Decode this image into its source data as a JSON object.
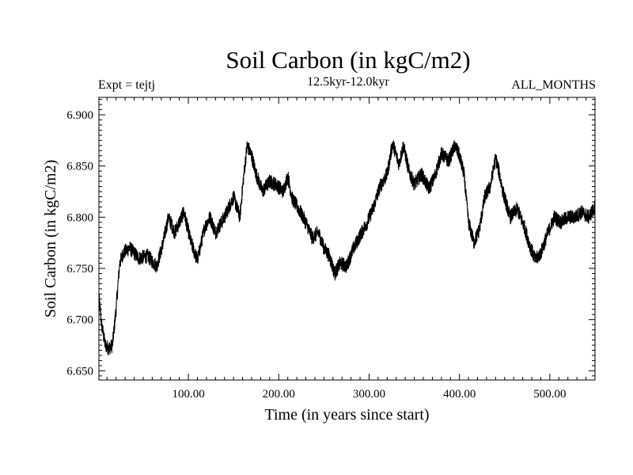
{
  "chart_data": {
    "type": "line",
    "title": "Soil Carbon (in kgC/m2)",
    "subtitle": "12.5kyr-12.0kyr",
    "left_annotation": "Expt = tejtj",
    "right_annotation": "ALL_MONTHS",
    "xlabel": "Time (in years since start)",
    "ylabel": "Soil Carbon (in kgC/m2)",
    "xlim": [
      1,
      550
    ],
    "ylim": [
      6.641,
      6.917
    ],
    "xticks": [
      100,
      200,
      300,
      400,
      500
    ],
    "xtick_labels": [
      "100.00",
      "200.00",
      "300.00",
      "400.00",
      "500.00"
    ],
    "yticks": [
      6.65,
      6.7,
      6.75,
      6.8,
      6.85,
      6.9
    ],
    "ytick_labels": [
      "6.650",
      "6.700",
      "6.750",
      "6.800",
      "6.850",
      "6.900"
    ],
    "grid": false,
    "series": [
      {
        "name": "Soil Carbon",
        "color": "#000000",
        "noise": 0.007,
        "x": [
          1,
          4,
          8,
          12,
          16,
          20,
          24,
          28,
          35,
          45,
          55,
          65,
          72,
          78,
          85,
          95,
          103,
          110,
          118,
          124,
          130,
          140,
          150,
          157,
          161,
          165,
          170,
          175,
          182,
          190,
          197,
          205,
          210,
          215,
          222,
          230,
          237,
          244,
          250,
          256,
          262,
          268,
          275,
          282,
          290,
          298,
          305,
          312,
          320,
          326,
          333,
          338,
          344,
          350,
          358,
          366,
          372,
          380,
          388,
          395,
          400,
          405,
          410,
          416,
          422,
          428,
          434,
          440,
          444,
          448,
          456,
          464,
          472,
          478,
          484,
          490,
          498,
          505,
          512,
          520,
          528,
          535,
          543,
          550
        ],
        "y": [
          6.722,
          6.695,
          6.675,
          6.672,
          6.675,
          6.71,
          6.755,
          6.765,
          6.77,
          6.76,
          6.762,
          6.752,
          6.775,
          6.8,
          6.785,
          6.805,
          6.775,
          6.758,
          6.79,
          6.8,
          6.785,
          6.8,
          6.82,
          6.8,
          6.838,
          6.87,
          6.86,
          6.842,
          6.825,
          6.835,
          6.832,
          6.825,
          6.84,
          6.818,
          6.808,
          6.795,
          6.78,
          6.785,
          6.77,
          6.762,
          6.745,
          6.755,
          6.752,
          6.768,
          6.782,
          6.795,
          6.81,
          6.83,
          6.842,
          6.872,
          6.852,
          6.87,
          6.845,
          6.832,
          6.842,
          6.828,
          6.838,
          6.862,
          6.855,
          6.87,
          6.86,
          6.842,
          6.795,
          6.775,
          6.788,
          6.82,
          6.83,
          6.858,
          6.843,
          6.825,
          6.8,
          6.808,
          6.79,
          6.772,
          6.758,
          6.765,
          6.785,
          6.8,
          6.795,
          6.8,
          6.8,
          6.805,
          6.8,
          6.81
        ]
      }
    ]
  }
}
